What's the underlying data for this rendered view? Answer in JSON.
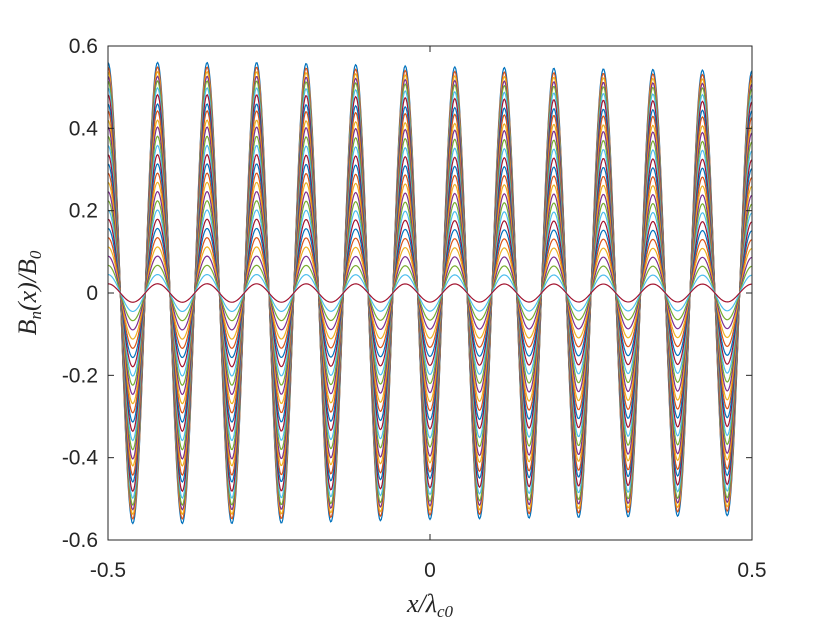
{
  "chart_data": {
    "type": "line",
    "title": "",
    "xlabel": "x/λ_c0",
    "ylabel": "B_n(x)/B_0",
    "xlim": [
      -0.5,
      0.5
    ],
    "ylim": [
      -0.6,
      0.6
    ],
    "xticks": [
      -0.5,
      0,
      0.5
    ],
    "xtick_labels": [
      "-0.5",
      "0",
      "0.5"
    ],
    "yticks": [
      -0.6,
      -0.4,
      -0.2,
      0,
      0.2,
      0.4,
      0.6
    ],
    "ytick_labels": [
      "-0.6",
      "-0.4",
      "-0.2",
      "0",
      "0.2",
      "0.4",
      "0.6"
    ],
    "grid": false,
    "legend": "none",
    "oscillation": {
      "cycles": 13,
      "phase_cycles": 0.25,
      "peak_envelope_x": [
        -0.5,
        -0.25,
        0,
        0.25,
        0.5
      ],
      "peak_envelope_y": [
        0.56,
        0.56,
        0.55,
        0.545,
        0.54
      ]
    },
    "series": [
      {
        "amplitude_fraction": 1.0
      },
      {
        "amplitude_fraction": 0.98
      },
      {
        "amplitude_fraction": 0.96
      },
      {
        "amplitude_fraction": 0.94
      },
      {
        "amplitude_fraction": 0.92
      },
      {
        "amplitude_fraction": 0.89
      },
      {
        "amplitude_fraction": 0.86
      },
      {
        "amplitude_fraction": 0.82
      },
      {
        "amplitude_fraction": 0.79
      },
      {
        "amplitude_fraction": 0.75
      },
      {
        "amplitude_fraction": 0.72
      },
      {
        "amplitude_fraction": 0.68
      },
      {
        "amplitude_fraction": 0.64
      },
      {
        "amplitude_fraction": 0.6
      },
      {
        "amplitude_fraction": 0.56
      },
      {
        "amplitude_fraction": 0.52
      },
      {
        "amplitude_fraction": 0.48
      },
      {
        "amplitude_fraction": 0.44
      },
      {
        "amplitude_fraction": 0.4
      },
      {
        "amplitude_fraction": 0.36
      },
      {
        "amplitude_fraction": 0.32
      },
      {
        "amplitude_fraction": 0.28
      },
      {
        "amplitude_fraction": 0.24
      },
      {
        "amplitude_fraction": 0.2
      },
      {
        "amplitude_fraction": 0.16
      },
      {
        "amplitude_fraction": 0.12
      },
      {
        "amplitude_fraction": 0.08
      },
      {
        "amplitude_fraction": 0.04
      }
    ],
    "colors": [
      "#0072BD",
      "#D95319",
      "#EDB120",
      "#7E2F8E",
      "#77AC30",
      "#4DBEEE",
      "#A2142F"
    ]
  }
}
